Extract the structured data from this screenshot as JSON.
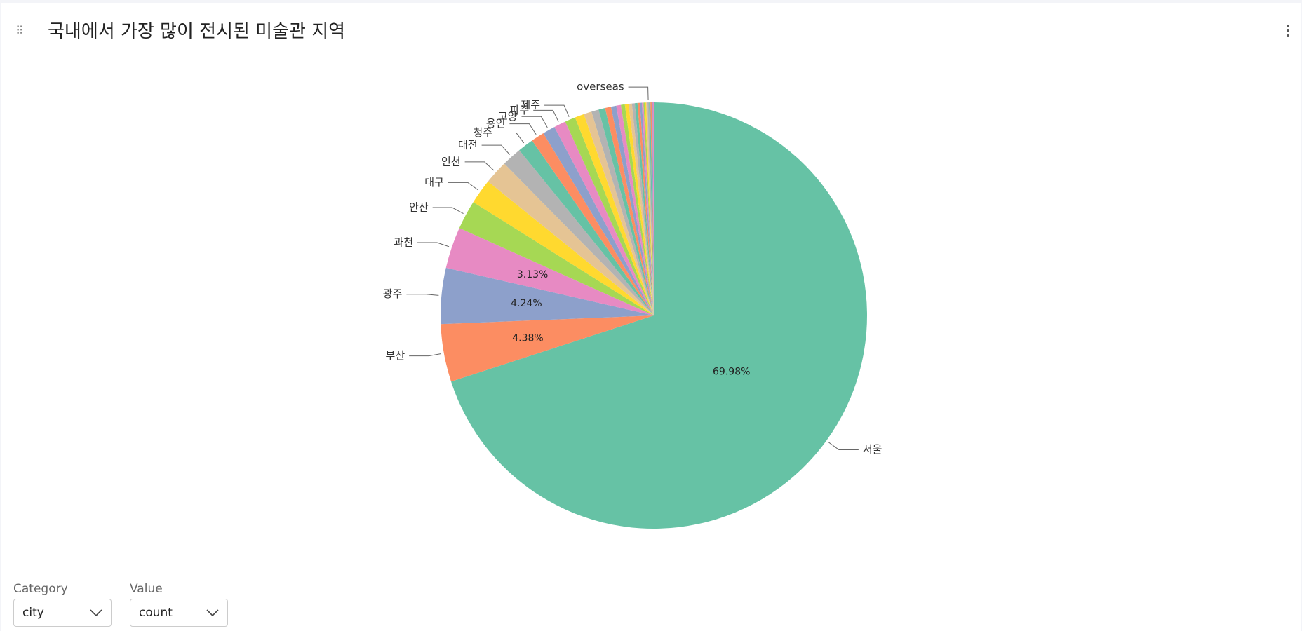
{
  "chart_data": {
    "type": "pie",
    "title": "국내에서 가장 많이 전시된 미술관 지역",
    "categories": [
      "서울",
      "부산",
      "광주",
      "과천",
      "안산",
      "대구",
      "인천",
      "대전",
      "청주",
      "용인",
      "고양",
      "파주",
      "제주",
      null,
      null,
      null,
      null,
      null,
      null,
      null,
      null,
      null,
      null,
      null,
      null,
      null,
      null,
      null,
      null,
      null,
      null,
      "overseas",
      null,
      null,
      null,
      null
    ],
    "values": [
      69.98,
      4.38,
      4.24,
      3.13,
      2.2,
      1.9,
      1.8,
      1.5,
      1.2,
      1.0,
      0.95,
      0.9,
      0.8,
      0.7,
      0.6,
      0.55,
      0.5,
      0.45,
      0.4,
      0.35,
      0.3,
      0.28,
      0.25,
      0.22,
      0.2,
      0.18,
      0.15,
      0.12,
      0.1,
      0.1,
      0.1,
      0.12,
      0.1,
      0.09,
      0.08,
      0.08
    ],
    "value_labels": [
      "69.98%",
      "4.38%",
      "4.24%",
      "3.13%",
      null,
      null,
      null,
      null,
      null,
      null,
      null,
      null,
      null,
      null,
      null,
      null,
      null,
      null,
      null,
      null,
      null,
      null,
      null,
      null,
      null,
      null,
      null,
      null,
      null,
      null,
      null,
      null,
      null,
      null,
      null,
      null
    ],
    "colors": [
      "#66c2a5",
      "#fc8d62",
      "#8da0cb",
      "#e78ac3",
      "#a6d854",
      "#ffd92f",
      "#e5c494",
      "#b3b3b3"
    ],
    "start_angle": 90,
    "direction": "clockwise"
  },
  "controls": [
    {
      "label": "Category",
      "value": "city"
    },
    {
      "label": "Value",
      "value": "count"
    }
  ]
}
